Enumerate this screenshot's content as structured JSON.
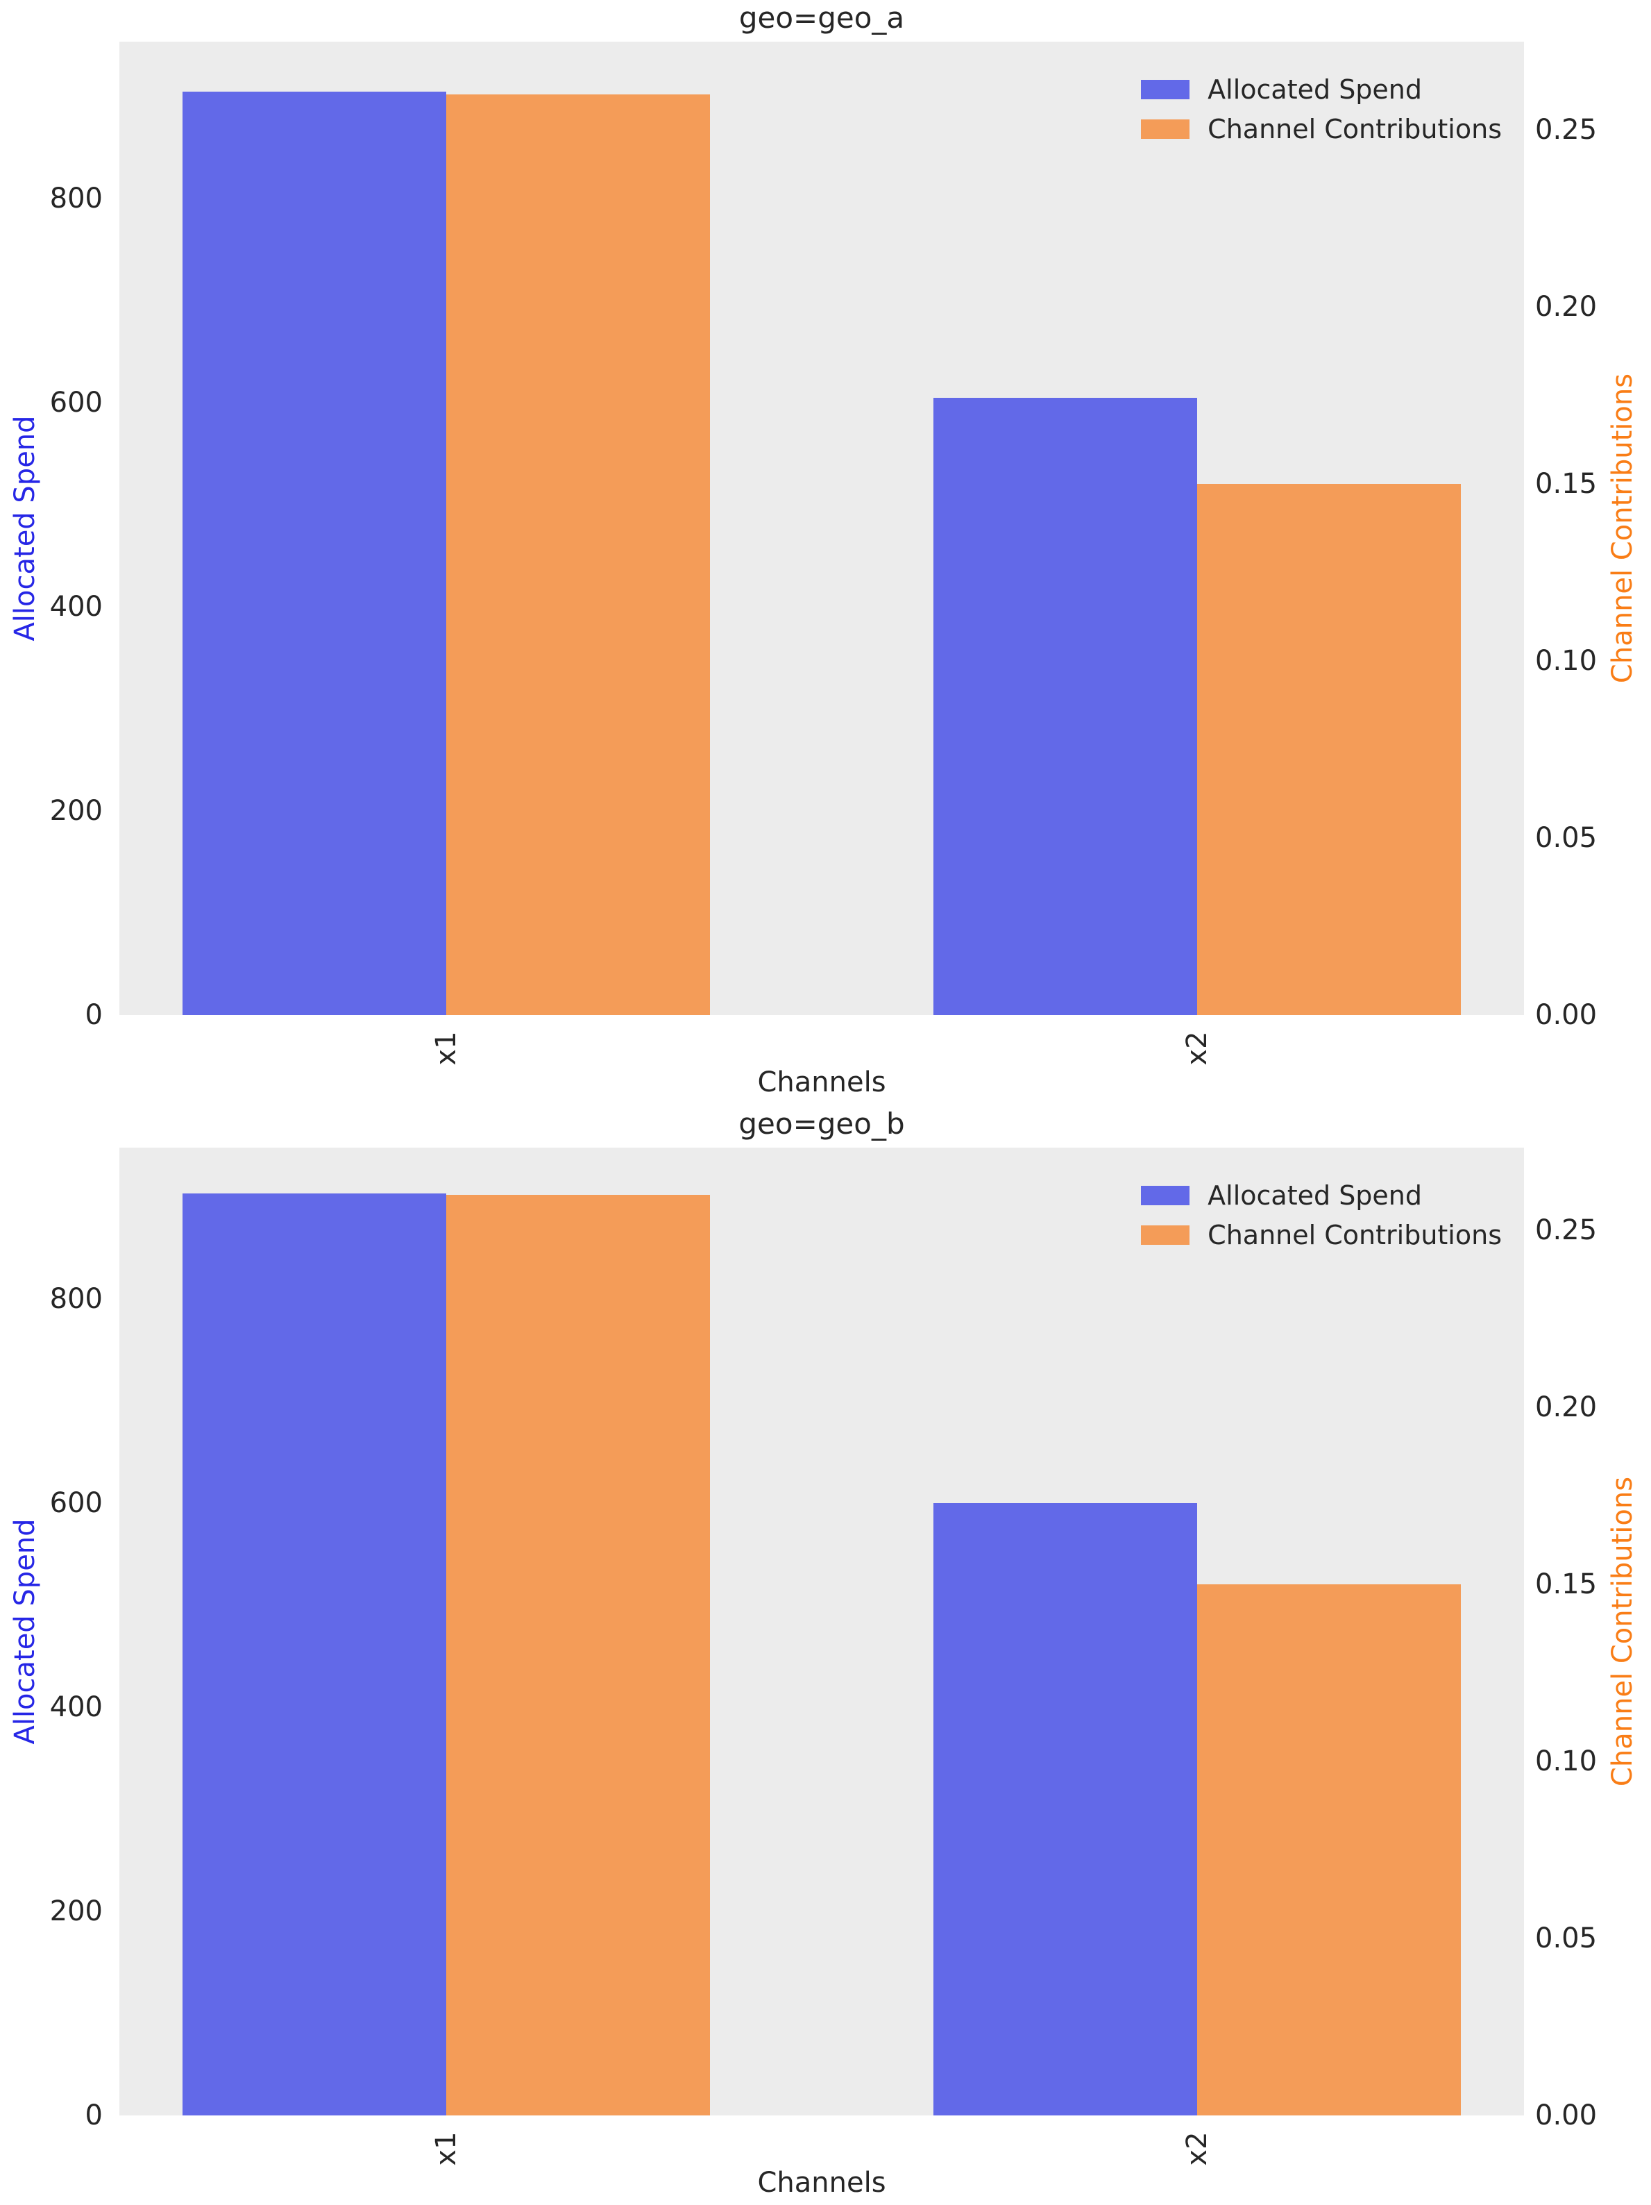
{
  "figure": {
    "background": "#ffffff",
    "axes_background": "#ececec",
    "text_color": "#262626"
  },
  "chart_data": [
    {
      "type": "bar",
      "title": "geo=geo_a",
      "xlabel": "Channels",
      "ylabel_left": "Allocated Spend",
      "ylabel_right": "Channel Contributions",
      "categories": [
        "x1",
        "x2"
      ],
      "series": [
        {
          "name": "Allocated Spend",
          "axis": "left",
          "color": "#6269e8",
          "values": [
            905,
            605
          ]
        },
        {
          "name": "Channel Contributions",
          "axis": "right",
          "color": "#f49c58",
          "values": [
            0.26,
            0.15
          ]
        }
      ],
      "ylim_left": [
        0,
        954
      ],
      "ylim_right": [
        0,
        0.275
      ],
      "yticks_left": [
        "0",
        "200",
        "400",
        "600",
        "800"
      ],
      "yticks_right": [
        "0.00",
        "0.05",
        "0.10",
        "0.15",
        "0.20",
        "0.25"
      ],
      "legend": {
        "position": "upper right",
        "entries": [
          "Allocated Spend",
          "Channel Contributions"
        ]
      },
      "grid": false,
      "axis_label_colors": {
        "left": "#2626e6",
        "right": "#f97d16"
      }
    },
    {
      "type": "bar",
      "title": "geo=geo_b",
      "xlabel": "Channels",
      "ylabel_left": "Allocated Spend",
      "ylabel_right": "Channel Contributions",
      "categories": [
        "x1",
        "x2"
      ],
      "series": [
        {
          "name": "Allocated Spend",
          "axis": "left",
          "color": "#6269e8",
          "values": [
            903,
            600
          ]
        },
        {
          "name": "Channel Contributions",
          "axis": "right",
          "color": "#f49c58",
          "values": [
            0.26,
            0.15
          ]
        }
      ],
      "ylim_left": [
        0,
        948
      ],
      "ylim_right": [
        0,
        0.2733
      ],
      "yticks_left": [
        "0",
        "200",
        "400",
        "600",
        "800"
      ],
      "yticks_right": [
        "0.00",
        "0.05",
        "0.10",
        "0.15",
        "0.20",
        "0.25"
      ],
      "legend": {
        "position": "upper right",
        "entries": [
          "Allocated Spend",
          "Channel Contributions"
        ]
      },
      "grid": false,
      "axis_label_colors": {
        "left": "#2626e6",
        "right": "#f97d16"
      }
    }
  ]
}
